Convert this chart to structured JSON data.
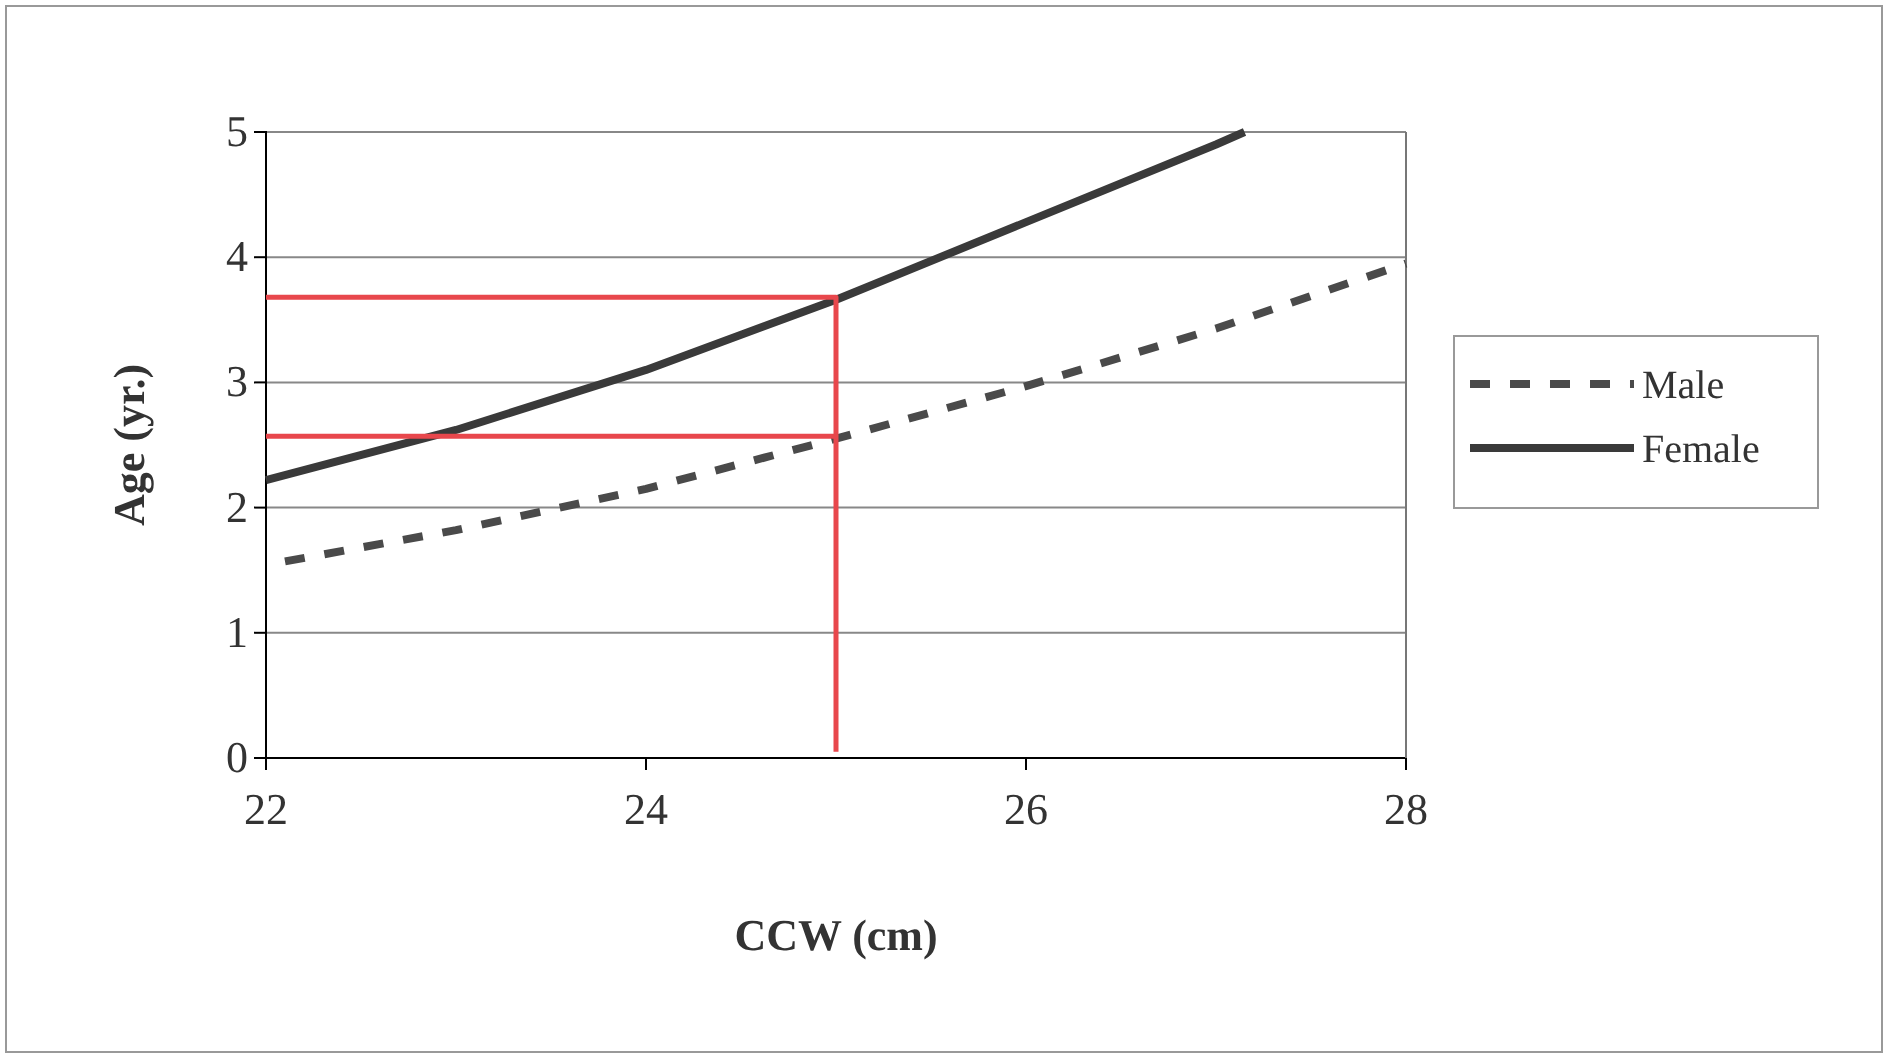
{
  "chart_data": {
    "type": "line",
    "xlabel": "CCW (cm)",
    "ylabel": "Age (yr.)",
    "xlim": [
      22,
      28
    ],
    "xticks": [
      22,
      24,
      26,
      28
    ],
    "ylim": [
      0,
      5
    ],
    "yticks": [
      0,
      1,
      2,
      3,
      4,
      5
    ],
    "grid": "y",
    "legend": "right",
    "series": [
      {
        "name": "Male",
        "color": "#4a4a4a",
        "line_style": "dashed",
        "x": [
          22.1,
          23,
          24,
          25,
          26,
          27,
          28
        ],
        "values": [
          1.57,
          1.82,
          2.15,
          2.55,
          2.97,
          3.43,
          3.95
        ]
      },
      {
        "name": "Female",
        "color": "#3a3a3a",
        "line_style": "solid",
        "x": [
          22,
          23,
          24,
          25,
          26,
          27,
          27.15
        ],
        "values": [
          2.22,
          2.62,
          3.1,
          3.66,
          4.28,
          4.9,
          5
        ]
      },
      {
        "color": "#e8474c",
        "line_style": "solid",
        "x": [
          22,
          25,
          25
        ],
        "values": [
          3.68,
          3.68,
          0.05
        ]
      },
      {
        "color": "#e8474c",
        "line_style": "solid",
        "x": [
          22,
          25
        ],
        "values": [
          2.57,
          2.57
        ]
      }
    ]
  }
}
